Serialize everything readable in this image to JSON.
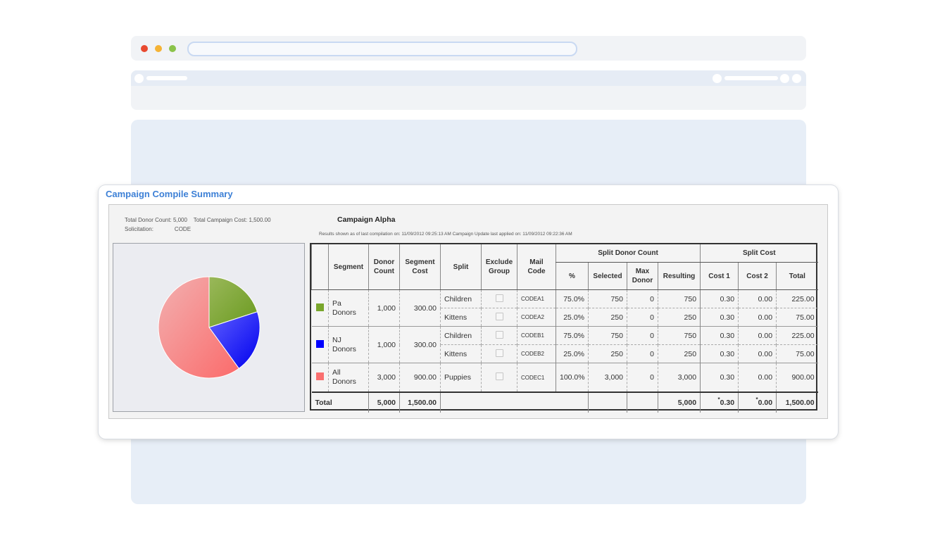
{
  "panel_title": "Campaign Compile Summary",
  "summary": {
    "total_donor_count_label": "Total Donor Count:",
    "total_donor_count": "5,000",
    "total_campaign_cost_label": "Total Campaign Cost:",
    "total_campaign_cost": "1,500.00",
    "solicitation_label": "Solicitation:",
    "solicitation": "CODE"
  },
  "campaign": {
    "name": "Campaign Alpha",
    "results_note": "Results shown as of last compilation on:  11/09/2012 09:25:13 AM     Campaign Update last applied on:  11/09/2012 09:22:36 AM"
  },
  "table": {
    "headers": {
      "segment": "Segment",
      "donor_count": "Donor Count",
      "segment_cost": "Segment Cost",
      "split": "Split",
      "exclude_group": "Exclude Group",
      "mail_code": "Mail Code",
      "split_donor_count": "Split Donor Count",
      "split_cost": "Split Cost",
      "pct": "%",
      "selected": "Selected",
      "max_donor": "Max Donor",
      "resulting": "Resulting",
      "cost1": "Cost 1",
      "cost2": "Cost 2",
      "total": "Total"
    },
    "rows": [
      {
        "segment": "Pa Donors",
        "donor_count": "1,000",
        "segment_cost": "300.00",
        "split": "Children",
        "mail_code": "CODEA1",
        "pct": "75.0%",
        "selected": "750",
        "max_donor": "0",
        "resulting": "750",
        "cost1": "0.30",
        "cost2": "0.00",
        "total": "225.00"
      },
      {
        "split": "Kittens",
        "mail_code": "CODEA2",
        "pct": "25.0%",
        "selected": "250",
        "max_donor": "0",
        "resulting": "250",
        "cost1": "0.30",
        "cost2": "0.00",
        "total": "75.00"
      },
      {
        "segment": "NJ Donors",
        "donor_count": "1,000",
        "segment_cost": "300.00",
        "split": "Children",
        "mail_code": "CODEB1",
        "pct": "75.0%",
        "selected": "750",
        "max_donor": "0",
        "resulting": "750",
        "cost1": "0.30",
        "cost2": "0.00",
        "total": "225.00"
      },
      {
        "split": "Kittens",
        "mail_code": "CODEB2",
        "pct": "25.0%",
        "selected": "250",
        "max_donor": "0",
        "resulting": "250",
        "cost1": "0.30",
        "cost2": "0.00",
        "total": "75.00"
      },
      {
        "segment": "All Donors",
        "donor_count": "3,000",
        "segment_cost": "900.00",
        "split": "Puppies",
        "mail_code": "CODEC1",
        "pct": "100.0%",
        "selected": "3,000",
        "max_donor": "0",
        "resulting": "3,000",
        "cost1": "0.30",
        "cost2": "0.00",
        "total": "900.00"
      }
    ],
    "totals": {
      "label": "Total",
      "donor_count": "5,000",
      "segment_cost": "1,500.00",
      "resulting": "5,000",
      "cost1": "0.30",
      "cost2": "0.00",
      "total": "1,500.00",
      "asterisk": "*"
    }
  },
  "chart_data": {
    "type": "pie",
    "categories": [
      "Pa Donors",
      "NJ Donors",
      "All Donors"
    ],
    "values": [
      1000,
      1000,
      3000
    ],
    "colors": [
      "#79a62b",
      "#0000ff",
      "#fa7070"
    ]
  }
}
